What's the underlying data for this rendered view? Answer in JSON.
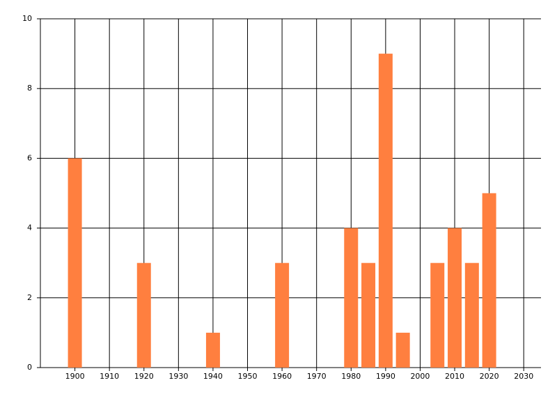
{
  "chart_data": {
    "type": "bar",
    "x": [
      1900,
      1920,
      1940,
      1960,
      1980,
      1985,
      1990,
      1995,
      2005,
      2010,
      2015,
      2020
    ],
    "values": [
      6,
      3,
      1,
      3,
      4,
      3,
      9,
      1,
      3,
      4,
      3,
      5
    ],
    "color": "#ff7f3f",
    "xlim": [
      1890,
      2035
    ],
    "xticks": [
      1900,
      1910,
      1920,
      1930,
      1940,
      1950,
      1960,
      1970,
      1980,
      1990,
      2000,
      2010,
      2020,
      2030
    ],
    "ylim": [
      0,
      10
    ],
    "yticks": [
      0,
      2,
      4,
      6,
      8,
      10
    ],
    "grid": true
  }
}
